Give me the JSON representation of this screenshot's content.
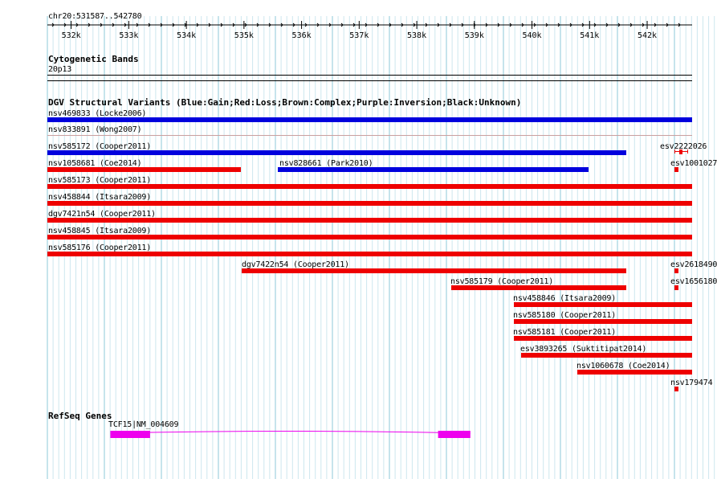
{
  "ruler": {
    "range_label": "chr20:531587..542780",
    "ticks": [
      "532k",
      "533k",
      "534k",
      "535k",
      "536k",
      "537k",
      "538k",
      "539k",
      "540k",
      "541k",
      "542k"
    ]
  },
  "cytoband": {
    "title": "Cytogenetic Bands",
    "band": "20p13"
  },
  "dgv": {
    "title": "DGV Structural Variants (Blue:Gain;Red:Loss;Brown:Complex;Purple:Inversion;Black:Unknown)",
    "colors": {
      "gain": "#0000dd",
      "loss": "#ee0000"
    },
    "features": [
      {
        "label": "nsv469833 (Locke2006)",
        "type": "gain",
        "start": 531587,
        "end": 542780
      },
      {
        "label": "nsv833891 (Wong2007)",
        "type": "loss",
        "start": 531587,
        "end": 542780
      },
      {
        "label": "nsv585172 (Cooper2011)",
        "type": "gain",
        "start": 531587,
        "end": 541637
      },
      {
        "label": "esv2222026",
        "type": "loss",
        "start": 542474,
        "end": 542705
      },
      {
        "label": "nsv1058681 (Coe2014)",
        "type": "loss",
        "start": 531587,
        "end": 534950
      },
      {
        "label": "nsv828661 (Park2010)",
        "type": "gain",
        "start": 535590,
        "end": 540980
      },
      {
        "label": "esv1001027",
        "type": "loss",
        "start": 542480,
        "end": 542540
      },
      {
        "label": "nsv585173 (Cooper2011)",
        "type": "loss",
        "start": 531587,
        "end": 542780
      },
      {
        "label": "nsv458844 (Itsara2009)",
        "type": "loss",
        "start": 531587,
        "end": 542780
      },
      {
        "label": "dgv7421n54 (Cooper2011)",
        "type": "loss",
        "start": 531587,
        "end": 542780
      },
      {
        "label": "nsv458845 (Itsara2009)",
        "type": "loss",
        "start": 531587,
        "end": 542780
      },
      {
        "label": "nsv585176 (Cooper2011)",
        "type": "loss",
        "start": 531587,
        "end": 542780
      },
      {
        "label": "dgv7422n54 (Cooper2011)",
        "type": "loss",
        "start": 534960,
        "end": 541640
      },
      {
        "label": "esv2618490",
        "type": "loss",
        "start": 542480,
        "end": 542540
      },
      {
        "label": "nsv585179 (Cooper2011)",
        "type": "loss",
        "start": 538600,
        "end": 541640
      },
      {
        "label": "esv1656180",
        "type": "loss",
        "start": 542480,
        "end": 542540
      },
      {
        "label": "nsv458846 (Itsara2009)",
        "type": "loss",
        "start": 539680,
        "end": 542780
      },
      {
        "label": "nsv585180 (Cooper2011)",
        "type": "loss",
        "start": 539680,
        "end": 542780
      },
      {
        "label": "nsv585181 (Cooper2011)",
        "type": "loss",
        "start": 539680,
        "end": 542780
      },
      {
        "label": "esv3893265 (Suktitipat2014)",
        "type": "loss",
        "start": 539810,
        "end": 542780
      },
      {
        "label": "nsv1060678 (Coe2014)",
        "type": "loss",
        "start": 540780,
        "end": 542780
      },
      {
        "label": "nsv179474",
        "type": "loss",
        "start": 542480,
        "end": 542540
      }
    ]
  },
  "refseq": {
    "title": "RefSeq Genes",
    "gene_label": "TCF15|NM_004609",
    "color": "#ee00ee",
    "start": 532680,
    "end": 538930,
    "exons": [
      [
        532680,
        533370
      ],
      [
        538370,
        538930
      ]
    ]
  }
}
